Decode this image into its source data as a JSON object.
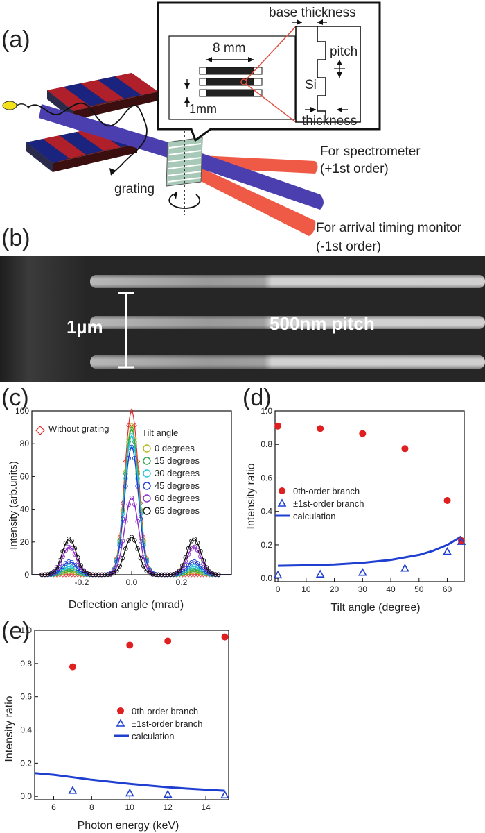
{
  "panel_labels": {
    "a": "(a)",
    "b": "(b)",
    "c": "(c)",
    "d": "(d)",
    "e": "(e)"
  },
  "panel_a": {
    "base_thickness": "base thickness",
    "dim_8mm": "8 mm",
    "dim_1mm": "1mm",
    "pitch": "pitch",
    "si": "Si",
    "thickness": "thickness",
    "grating": "grating",
    "spectrometer_line1": "For spectrometer",
    "spectrometer_line2": "(+1st order)",
    "timing_line1": "For arrival timing monitor",
    "timing_line2": "(-1st order)"
  },
  "panel_b": {
    "scale_label": "1µm",
    "pitch_label": "500nm pitch"
  },
  "colors": {
    "red_beam": "#ef5a46",
    "blue_beam": "#4b3fb0",
    "magnet_red": "#b0202a",
    "magnet_blue": "#1a237e",
    "series_red": "#e02020",
    "series_blue": "#1f3fd0"
  },
  "chart_data": [
    {
      "id": "c",
      "type": "line",
      "xlabel": "Deflection angle (mrad)",
      "ylabel": "Intensity (arb.units)",
      "xlim": [
        -0.4,
        0.4
      ],
      "ylim": [
        0,
        100
      ],
      "xticks": [
        "-0.2",
        "0.0",
        "0.2"
      ],
      "xtick_values": [
        -0.2,
        0.0,
        0.2
      ],
      "yticks": [
        "0",
        "20",
        "40",
        "60",
        "80",
        "100"
      ],
      "ytick_values": [
        0,
        20,
        40,
        60,
        80,
        100
      ],
      "legend_title": "Tilt angle",
      "without_grating_label": "Without grating",
      "peak_x": [
        -0.25,
        0.0,
        0.25
      ],
      "peak_width": 0.028,
      "series": [
        {
          "name": "Without grating",
          "center": 100,
          "side": 0,
          "color": "#e03030"
        },
        {
          "name": "0 degrees",
          "center": 91,
          "side": 2,
          "color": "#b5b81e"
        },
        {
          "name": "15 degrees",
          "center": 89,
          "side": 3,
          "color": "#2fa84f"
        },
        {
          "name": "30 degrees",
          "center": 85,
          "side": 5,
          "color": "#26c6da"
        },
        {
          "name": "45 degrees",
          "center": 78,
          "side": 8,
          "color": "#1f3fd0"
        },
        {
          "name": "60 degrees",
          "center": 47,
          "side": 17,
          "color": "#8e2fc9"
        },
        {
          "name": "65 degrees",
          "center": 23,
          "side": 22,
          "color": "#111111"
        }
      ]
    },
    {
      "id": "d",
      "type": "scatter",
      "xlabel": "Tilt angle (degree)",
      "ylabel": "Intensity ratio",
      "xlim": [
        -1,
        66
      ],
      "ylim": [
        -0.02,
        1.0
      ],
      "xticks": [
        "0",
        "10",
        "20",
        "30",
        "40",
        "50",
        "60"
      ],
      "xtick_values": [
        0,
        10,
        20,
        30,
        40,
        50,
        60
      ],
      "yticks": [
        "0.0",
        "0.2",
        "0.4",
        "0.6",
        "0.8",
        "1.0"
      ],
      "ytick_values": [
        0.0,
        0.2,
        0.4,
        0.6,
        0.8,
        1.0
      ],
      "legend": [
        "0th-order branch",
        "±1st-order branch",
        "calculation"
      ],
      "zeroth": {
        "x": [
          0,
          15,
          30,
          45,
          60,
          65
        ],
        "y": [
          0.91,
          0.895,
          0.865,
          0.775,
          0.465,
          0.225
        ]
      },
      "first": {
        "x": [
          0,
          15,
          30,
          45,
          60,
          65
        ],
        "y": [
          0.02,
          0.025,
          0.035,
          0.06,
          0.16,
          0.22
        ]
      },
      "calculation": {
        "x": [
          0,
          10,
          20,
          30,
          40,
          50,
          55,
          60,
          65
        ],
        "y": [
          0.075,
          0.078,
          0.083,
          0.093,
          0.11,
          0.14,
          0.165,
          0.2,
          0.25
        ]
      }
    },
    {
      "id": "e",
      "type": "scatter",
      "xlabel": "Photon energy (keV)",
      "ylabel": "Intensity ratio",
      "xlim": [
        5,
        15.2
      ],
      "ylim": [
        -0.02,
        1.0
      ],
      "xticks": [
        "6",
        "8",
        "10",
        "12",
        "14"
      ],
      "xtick_values": [
        6,
        8,
        10,
        12,
        14
      ],
      "yticks": [
        "0.0",
        "0.2",
        "0.4",
        "0.6",
        "0.8",
        "1.0"
      ],
      "ytick_values": [
        0.0,
        0.2,
        0.4,
        0.6,
        0.8,
        1.0
      ],
      "legend": [
        "0th-order branch",
        "±1st-order branch",
        "calculation"
      ],
      "zeroth": {
        "x": [
          7,
          10,
          12,
          15
        ],
        "y": [
          0.78,
          0.91,
          0.935,
          0.96
        ]
      },
      "first": {
        "x": [
          7,
          10,
          12,
          15
        ],
        "y": [
          0.035,
          0.02,
          0.012,
          0.008
        ]
      },
      "calculation": {
        "x": [
          5,
          6,
          7,
          8,
          9,
          10,
          11,
          12,
          13,
          14,
          15
        ],
        "y": [
          0.14,
          0.13,
          0.115,
          0.1,
          0.088,
          0.075,
          0.065,
          0.055,
          0.047,
          0.04,
          0.034
        ]
      }
    }
  ]
}
